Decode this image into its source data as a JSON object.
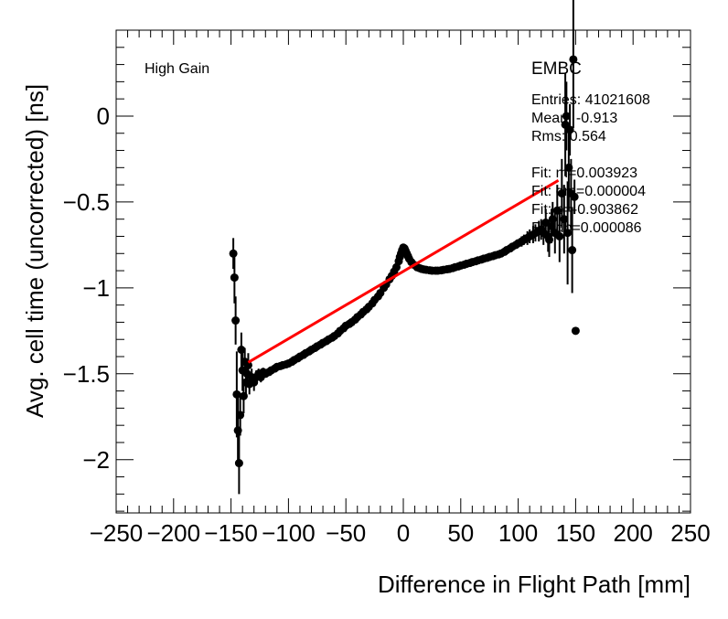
{
  "chart_data": {
    "type": "scatter",
    "title": "",
    "xlabel": "Difference in Flight Path [mm]",
    "ylabel": "Avg. cell time (uncorrected) [ns]",
    "xlim": [
      -250,
      250
    ],
    "ylim": [
      -2.31,
      0.5
    ],
    "xticks": [
      -250,
      -200,
      -150,
      -100,
      -50,
      0,
      50,
      100,
      150,
      200,
      250
    ],
    "xtick_labels": [
      "−250",
      "−200",
      "−150",
      "−100",
      "−50",
      "0",
      "50",
      "100",
      "150",
      "200",
      "250"
    ],
    "yticks": [
      -2,
      -1.5,
      -1,
      -0.5,
      0
    ],
    "ytick_labels": [
      "−2",
      "−1.5",
      "−1",
      "−0.5",
      "0"
    ],
    "grid": false,
    "marker_color": "#000000",
    "fit_color": "#ff0000",
    "points_note_columns": [
      "x",
      "y",
      "error"
    ],
    "points": [
      [
        -148,
        -0.8,
        0.09
      ],
      [
        -147,
        -0.94,
        0.15
      ],
      [
        -146,
        -1.19,
        0.14
      ],
      [
        -145,
        -1.62,
        0.25
      ],
      [
        -144,
        -1.83,
        0.2
      ],
      [
        -143,
        -2.02,
        0.18
      ],
      [
        -142,
        -1.74,
        0.12
      ],
      [
        -141,
        -1.36,
        0.1
      ],
      [
        -140,
        -1.48,
        0.12
      ],
      [
        -139,
        -1.63,
        0.1
      ],
      [
        -138,
        -1.43,
        0.08
      ],
      [
        -137,
        -1.55,
        0.08
      ],
      [
        -136,
        -1.5,
        0.07
      ],
      [
        -135,
        -1.45,
        0.07
      ],
      [
        -134,
        -1.56,
        0.06
      ],
      [
        -132,
        -1.52,
        0.05
      ],
      [
        -130,
        -1.55,
        0.05
      ],
      [
        -128,
        -1.52,
        0.04
      ],
      [
        -126,
        -1.5,
        0.03
      ],
      [
        -124,
        -1.52,
        0.03
      ],
      [
        -122,
        -1.49,
        0.025
      ],
      [
        -120,
        -1.5,
        0.02
      ],
      [
        -117,
        -1.49,
        0.015
      ],
      [
        -115,
        -1.48,
        0.015
      ],
      [
        -112,
        -1.47,
        0.01
      ],
      [
        -110,
        -1.46,
        0.01
      ],
      [
        -107,
        -1.455,
        0.01
      ],
      [
        -105,
        -1.45,
        0.01
      ],
      [
        -102,
        -1.445,
        0.005
      ],
      [
        -100,
        -1.44,
        0.005
      ],
      [
        -97,
        -1.43,
        0
      ],
      [
        -95,
        -1.42,
        0
      ],
      [
        -92,
        -1.41,
        0
      ],
      [
        -90,
        -1.4,
        0
      ],
      [
        -87,
        -1.39,
        0
      ],
      [
        -85,
        -1.38,
        0
      ],
      [
        -82,
        -1.37,
        0
      ],
      [
        -80,
        -1.36,
        0
      ],
      [
        -77,
        -1.35,
        0
      ],
      [
        -75,
        -1.34,
        0
      ],
      [
        -72,
        -1.33,
        0
      ],
      [
        -70,
        -1.32,
        0
      ],
      [
        -67,
        -1.31,
        0
      ],
      [
        -65,
        -1.3,
        0
      ],
      [
        -62,
        -1.29,
        0
      ],
      [
        -60,
        -1.28,
        0
      ],
      [
        -57,
        -1.265,
        0
      ],
      [
        -55,
        -1.25,
        0
      ],
      [
        -52,
        -1.235,
        0
      ],
      [
        -50,
        -1.22,
        0
      ],
      [
        -47,
        -1.21,
        0
      ],
      [
        -45,
        -1.2,
        0
      ],
      [
        -42,
        -1.185,
        0
      ],
      [
        -40,
        -1.17,
        0
      ],
      [
        -37,
        -1.155,
        0
      ],
      [
        -35,
        -1.14,
        0
      ],
      [
        -32,
        -1.125,
        0
      ],
      [
        -30,
        -1.11,
        0
      ],
      [
        -27,
        -1.09,
        0
      ],
      [
        -25,
        -1.07,
        0
      ],
      [
        -22,
        -1.05,
        0
      ],
      [
        -20,
        -1.03,
        0
      ],
      [
        -17,
        -1.0,
        0
      ],
      [
        -15,
        -0.98,
        0
      ],
      [
        -12,
        -0.95,
        0
      ],
      [
        -10,
        -0.93,
        0
      ],
      [
        -8,
        -0.905,
        0
      ],
      [
        -6,
        -0.88,
        0
      ],
      [
        -4,
        -0.845,
        0
      ],
      [
        -3,
        -0.82,
        0
      ],
      [
        -2,
        -0.8,
        0
      ],
      [
        -1,
        -0.78,
        0
      ],
      [
        0,
        -0.765,
        0
      ],
      [
        1,
        -0.77,
        0
      ],
      [
        2,
        -0.785,
        0
      ],
      [
        3,
        -0.8,
        0
      ],
      [
        4,
        -0.815,
        0
      ],
      [
        5,
        -0.83,
        0
      ],
      [
        7,
        -0.85,
        0
      ],
      [
        9,
        -0.865,
        0
      ],
      [
        12,
        -0.88,
        0
      ],
      [
        14,
        -0.885,
        0
      ],
      [
        16,
        -0.89,
        0
      ],
      [
        18,
        -0.893,
        0
      ],
      [
        20,
        -0.895,
        0
      ],
      [
        23,
        -0.898,
        0
      ],
      [
        25,
        -0.9,
        0
      ],
      [
        28,
        -0.9,
        0
      ],
      [
        30,
        -0.9,
        0
      ],
      [
        33,
        -0.898,
        0
      ],
      [
        35,
        -0.895,
        0
      ],
      [
        38,
        -0.892,
        0
      ],
      [
        40,
        -0.89,
        0
      ],
      [
        43,
        -0.885,
        0
      ],
      [
        45,
        -0.88,
        0
      ],
      [
        48,
        -0.875,
        0
      ],
      [
        50,
        -0.87,
        0
      ],
      [
        53,
        -0.865,
        0
      ],
      [
        55,
        -0.86,
        0
      ],
      [
        58,
        -0.855,
        0
      ],
      [
        60,
        -0.85,
        0
      ],
      [
        63,
        -0.845,
        0
      ],
      [
        65,
        -0.84,
        0
      ],
      [
        68,
        -0.835,
        0
      ],
      [
        70,
        -0.83,
        0
      ],
      [
        73,
        -0.825,
        0
      ],
      [
        75,
        -0.82,
        0
      ],
      [
        78,
        -0.815,
        0
      ],
      [
        80,
        -0.81,
        0
      ],
      [
        83,
        -0.805,
        0.01
      ],
      [
        85,
        -0.8,
        0.01
      ],
      [
        88,
        -0.79,
        0.01
      ],
      [
        90,
        -0.78,
        0.01
      ],
      [
        93,
        -0.77,
        0.02
      ],
      [
        95,
        -0.76,
        0.02
      ],
      [
        98,
        -0.75,
        0.02
      ],
      [
        100,
        -0.74,
        0.02
      ],
      [
        103,
        -0.73,
        0.03
      ],
      [
        105,
        -0.72,
        0.03
      ],
      [
        108,
        -0.71,
        0.04
      ],
      [
        110,
        -0.7,
        0.04
      ],
      [
        113,
        -0.69,
        0.05
      ],
      [
        115,
        -0.68,
        0.05
      ],
      [
        118,
        -0.67,
        0.06
      ],
      [
        120,
        -0.66,
        0.06
      ],
      [
        122,
        -0.68,
        0.07
      ],
      [
        124,
        -0.62,
        0.08
      ],
      [
        126,
        -0.7,
        0.09
      ],
      [
        127,
        -0.72,
        0.1
      ],
      [
        129,
        -0.64,
        0.1
      ],
      [
        130,
        -0.6,
        0.1
      ],
      [
        132,
        -0.68,
        0.12
      ],
      [
        134,
        -0.55,
        0.15
      ],
      [
        136,
        -0.7,
        0.15
      ],
      [
        138,
        -0.45,
        0.2
      ],
      [
        140,
        -0.6,
        0.2
      ],
      [
        141,
        -0.05,
        0.3
      ],
      [
        142,
        0.0,
        0.2
      ],
      [
        143,
        -0.68,
        0.3
      ],
      [
        144,
        -0.3,
        0.25
      ],
      [
        145,
        -0.08,
        0.15
      ],
      [
        146,
        -0.45,
        0.2
      ],
      [
        147,
        -0.78,
        0.25
      ],
      [
        148,
        0.33,
        0.4
      ],
      [
        149,
        -0.47,
        0.1
      ],
      [
        150,
        -1.25,
        0
      ]
    ],
    "fit": {
      "type": "linear",
      "m": 0.003923,
      "b": -0.903862,
      "x_range": [
        -135,
        135
      ]
    },
    "annotations": {
      "gain": "High Gain"
    },
    "stats": {
      "name": "EMBC",
      "lines": [
        "Entries: 41021608",
        "Mean: -0.913",
        "Rms: 0.564",
        "",
        "Fit: m=0.003923",
        "Fit: dm=0.000004",
        "Fit: b=-0.903862",
        "Fit: db=0.000086"
      ]
    }
  }
}
